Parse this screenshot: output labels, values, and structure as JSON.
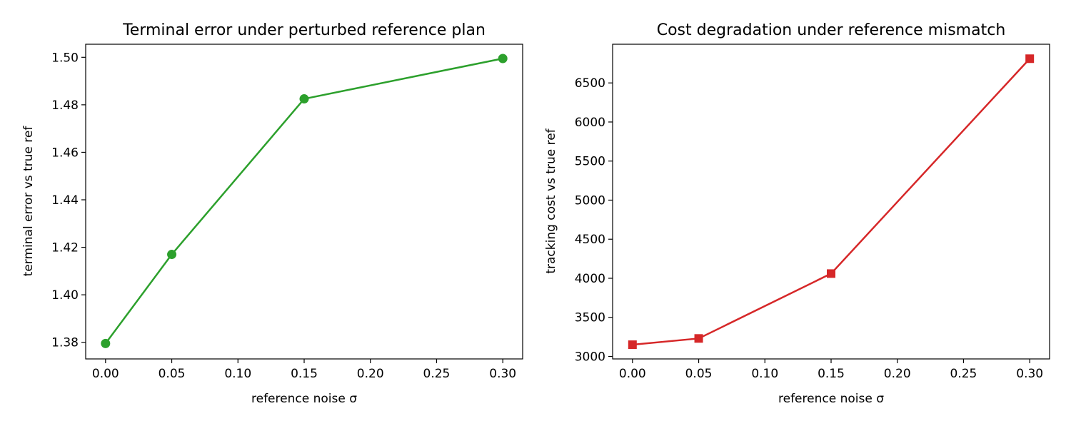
{
  "chart_data": [
    {
      "type": "line",
      "title": "Terminal error under perturbed reference plan",
      "xlabel": "reference noise σ",
      "ylabel": "terminal error vs true ref",
      "x": [
        0.0,
        0.05,
        0.15,
        0.3
      ],
      "series": [
        {
          "values": [
            1.3795,
            1.417,
            1.4825,
            1.4995
          ]
        }
      ],
      "xlim": [
        -0.015,
        0.315
      ],
      "ylim": [
        1.373,
        1.5055
      ],
      "xticks": [
        0.0,
        0.05,
        0.1,
        0.15,
        0.2,
        0.25,
        0.3
      ],
      "xtick_labels": [
        "0.00",
        "0.05",
        "0.10",
        "0.15",
        "0.20",
        "0.25",
        "0.30"
      ],
      "yticks": [
        1.38,
        1.4,
        1.42,
        1.44,
        1.46,
        1.48,
        1.5
      ],
      "ytick_labels": [
        "1.38",
        "1.40",
        "1.42",
        "1.44",
        "1.46",
        "1.48",
        "1.50"
      ],
      "color": "#2ca02c",
      "marker": "circle",
      "grid": false
    },
    {
      "type": "line",
      "title": "Cost degradation under reference mismatch",
      "xlabel": "reference noise σ",
      "ylabel": "tracking cost vs true ref",
      "x": [
        0.0,
        0.05,
        0.15,
        0.3
      ],
      "series": [
        {
          "values": [
            3150,
            3230,
            4060,
            6810
          ]
        }
      ],
      "xlim": [
        -0.015,
        0.315
      ],
      "ylim": [
        2968,
        6995
      ],
      "xticks": [
        0.0,
        0.05,
        0.1,
        0.15,
        0.2,
        0.25,
        0.3
      ],
      "xtick_labels": [
        "0.00",
        "0.05",
        "0.10",
        "0.15",
        "0.20",
        "0.25",
        "0.30"
      ],
      "yticks": [
        3000,
        3500,
        4000,
        4500,
        5000,
        5500,
        6000,
        6500
      ],
      "ytick_labels": [
        "3000",
        "3500",
        "4000",
        "4500",
        "5000",
        "5500",
        "6000",
        "6500"
      ],
      "color": "#d62728",
      "marker": "square",
      "grid": false
    }
  ]
}
